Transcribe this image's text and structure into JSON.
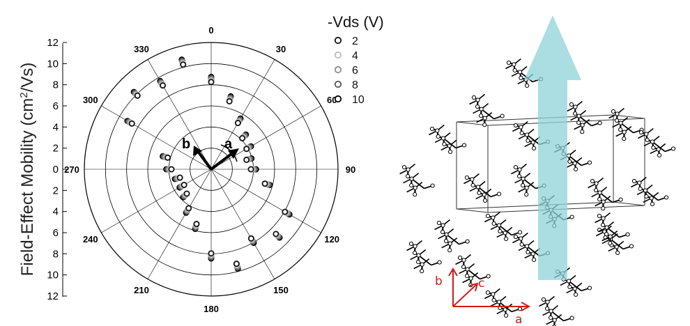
{
  "chart_data": {
    "type": "scatter",
    "projection": "polar",
    "ylabel": "Field-Effect Mobility (cm²/Vs)",
    "ylabel_main": "Field-Effect Mobility (cm",
    "ylabel_sup": "2",
    "ylabel_end": "/Vs)",
    "radial_range": [
      0,
      12
    ],
    "radial_ticks": [
      "12",
      "10",
      "8",
      "6",
      "4",
      "2",
      "0",
      "2",
      "4",
      "6",
      "8",
      "10",
      "12"
    ],
    "angle_ticks": [
      "0",
      "30",
      "60",
      "90",
      "120",
      "150",
      "180",
      "210",
      "240",
      "270",
      "300",
      "330"
    ],
    "grid": true,
    "legend": {
      "title": "-Vds (V)",
      "placement": "top-right",
      "entries": [
        "2",
        "4",
        "6",
        "8",
        "10"
      ]
    },
    "series_colors": [
      "#111111",
      "#bdbdbd",
      "#8c8c8c",
      "#555555",
      "#000000"
    ],
    "points": [
      {
        "angle": 0,
        "r": 8.5
      },
      {
        "angle": 15,
        "r": 6.9
      },
      {
        "angle": 30,
        "r": 5.3
      },
      {
        "angle": 45,
        "r": 4.4
      },
      {
        "angle": 60,
        "r": 4.1
      },
      {
        "angle": 75,
        "r": 3.7
      },
      {
        "angle": 90,
        "r": 4.0
      },
      {
        "angle": 105,
        "r": 5.5
      },
      {
        "angle": 120,
        "r": 8.3
      },
      {
        "angle": 135,
        "r": 8.9
      },
      {
        "angle": 150,
        "r": 7.8
      },
      {
        "angle": 165,
        "r": 9.5
      },
      {
        "angle": 180,
        "r": 8.2
      },
      {
        "angle": 195,
        "r": 5.6
      },
      {
        "angle": 210,
        "r": 4.5
      },
      {
        "angle": 225,
        "r": 3.5
      },
      {
        "angle": 240,
        "r": 3.2
      },
      {
        "angle": 255,
        "r": 3.3
      },
      {
        "angle": 270,
        "r": 4.0
      },
      {
        "angle": 285,
        "r": 4.5
      },
      {
        "angle": 300,
        "r": 8.9
      },
      {
        "angle": 315,
        "r": 10.1
      },
      {
        "angle": 330,
        "r": 9.4
      },
      {
        "angle": 345,
        "r": 10.5
      }
    ],
    "annotations": {
      "arrow_a_label": "a",
      "arrow_b_label": "b"
    }
  },
  "crystal": {
    "axis_a": "a",
    "axis_b": "b",
    "axis_c": "c",
    "axis_color": "#d11b1b",
    "transport_arrow_color": "#8fd3da"
  }
}
